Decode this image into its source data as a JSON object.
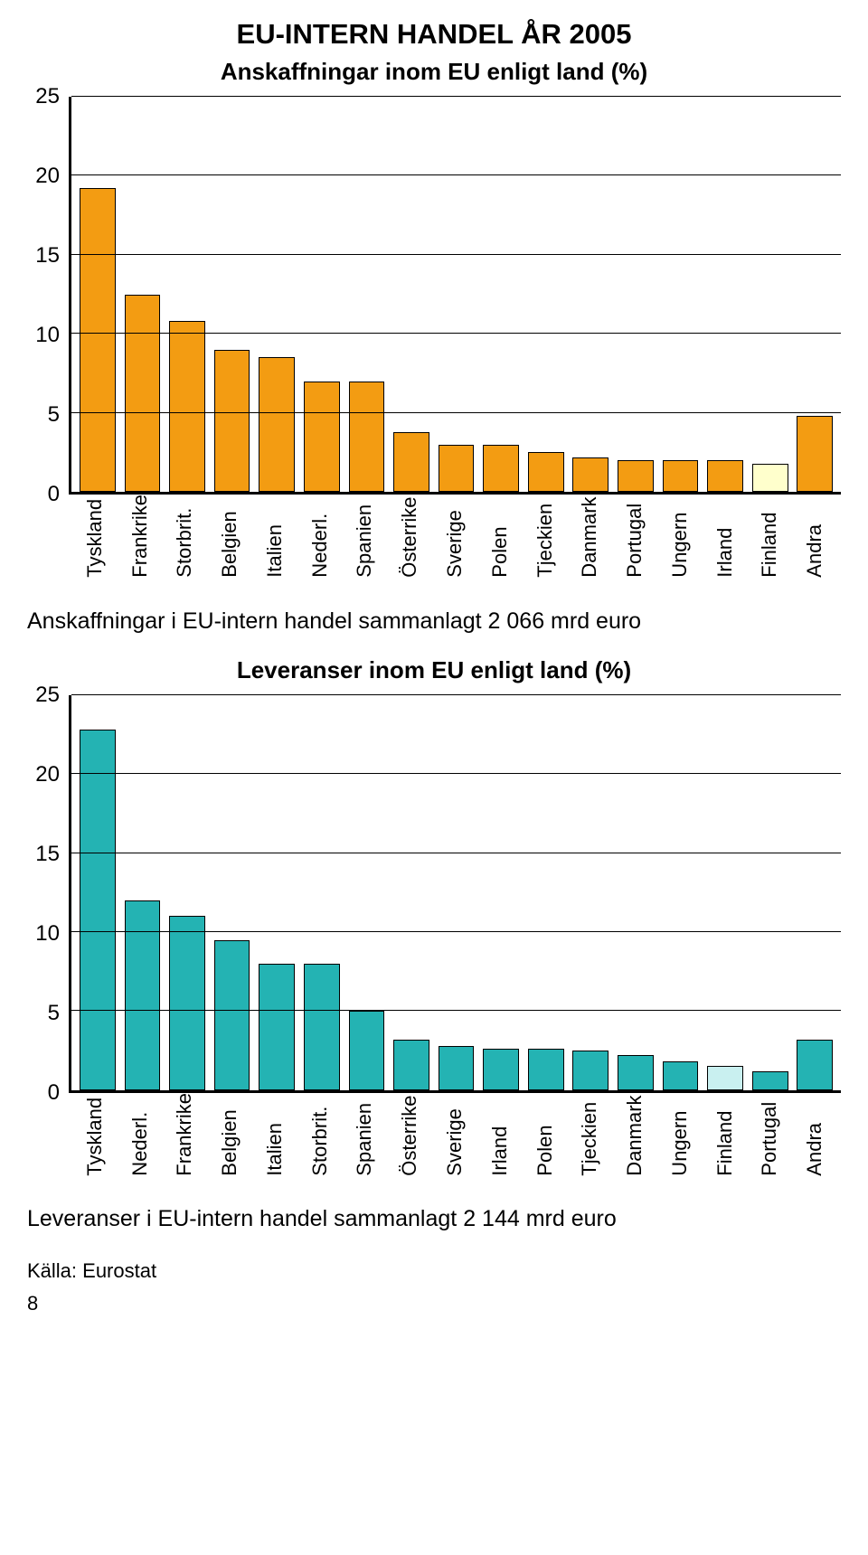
{
  "page": {
    "main_title": "EU-INTERN HANDEL ÅR 2005",
    "main_title_fontsize": 31,
    "page_number": "8",
    "source": "Källa: Eurostat"
  },
  "chart1": {
    "type": "bar",
    "title": "Anskaffningar inom EU enligt land (%)",
    "title_fontsize": 26,
    "ylim": [
      0,
      25
    ],
    "ytick_step": 5,
    "yticks": [
      0,
      5,
      10,
      15,
      20,
      25
    ],
    "grid_color": "#000000",
    "background_color": "#ffffff",
    "bar_border_color": "#000000",
    "default_bar_color": "#f39c12",
    "highlight_bar_color": "#ffffcc",
    "label_fontsize": 22,
    "tick_fontsize": 24,
    "categories": [
      "Tyskland",
      "Frankrike",
      "Storbrit.",
      "Belgien",
      "Italien",
      "Nederl.",
      "Spanien",
      "Österrike",
      "Sverige",
      "Polen",
      "Tjeckien",
      "Danmark",
      "Portugal",
      "Ungern",
      "Irland",
      "Finland",
      "Andra"
    ],
    "values": [
      19.2,
      12.5,
      10.8,
      9.0,
      8.5,
      7.0,
      7.0,
      3.8,
      3.0,
      3.0,
      2.5,
      2.2,
      2.0,
      2.0,
      2.0,
      1.8,
      4.8
    ],
    "highlight_index": 15,
    "caption": "Anskaffningar i EU-intern handel sammanlagt 2 066 mrd euro"
  },
  "chart2": {
    "type": "bar",
    "title": "Leveranser inom EU enligt land (%)",
    "title_fontsize": 26,
    "ylim": [
      0,
      25
    ],
    "ytick_step": 5,
    "yticks": [
      0,
      5,
      10,
      15,
      20,
      25
    ],
    "grid_color": "#000000",
    "background_color": "#ffffff",
    "bar_border_color": "#000000",
    "default_bar_color": "#24b3b3",
    "highlight_bar_color": "#c9f0f0",
    "label_fontsize": 22,
    "tick_fontsize": 24,
    "categories": [
      "Tyskland",
      "Nederl.",
      "Frankrike",
      "Belgien",
      "Italien",
      "Storbrit.",
      "Spanien",
      "Österrike",
      "Sverige",
      "Irland",
      "Polen",
      "Tjeckien",
      "Danmark",
      "Ungern",
      "Finland",
      "Portugal",
      "Andra"
    ],
    "values": [
      22.8,
      12.0,
      11.0,
      9.5,
      8.0,
      8.0,
      5.0,
      3.2,
      2.8,
      2.6,
      2.6,
      2.5,
      2.2,
      1.8,
      1.5,
      1.2,
      3.2
    ],
    "highlight_index": 14,
    "caption": "Leveranser i EU-intern handel sammanlagt 2 144 mrd euro"
  }
}
